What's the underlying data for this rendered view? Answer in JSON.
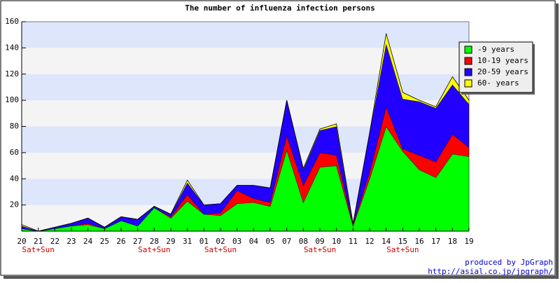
{
  "chart_data": {
    "type": "stacked_area",
    "title": "The number of influenza infection persons",
    "categories": [
      "20",
      "21",
      "22",
      "23",
      "24",
      "25",
      "26",
      "27",
      "28",
      "29",
      "31",
      "01",
      "02",
      "03",
      "04",
      "05",
      "07",
      "08",
      "09",
      "10",
      "11",
      "12",
      "14",
      "15",
      "16",
      "17",
      "18",
      "19"
    ],
    "sublabels": [
      null,
      "Sat+Sun",
      null,
      null,
      null,
      null,
      null,
      null,
      "Sat+Sun",
      null,
      null,
      null,
      "Sat+Sun",
      null,
      null,
      null,
      null,
      null,
      "Sat+Sun",
      null,
      null,
      null,
      null,
      "Sat+Sun",
      null,
      null,
      null,
      null
    ],
    "series": [
      {
        "name": "-9 years",
        "color": "#00ff00",
        "values": [
          2,
          0,
          2,
          4,
          5,
          2,
          8,
          4,
          18,
          10,
          23,
          13,
          12,
          21,
          22,
          19,
          62,
          22,
          49,
          50,
          4,
          40,
          80,
          61,
          47,
          41,
          59,
          57
        ]
      },
      {
        "name": "10-19 years",
        "color": "#ff0000",
        "values": [
          0,
          0,
          0,
          0,
          1,
          0,
          0,
          0,
          0,
          1,
          5,
          0,
          2,
          10,
          3,
          3,
          11,
          13,
          11,
          8,
          1,
          5,
          15,
          2,
          11,
          12,
          15,
          7
        ]
      },
      {
        "name": "20-59 years",
        "color": "#2200ff",
        "values": [
          2,
          0,
          1,
          2,
          4,
          1,
          3,
          5,
          1,
          2,
          9,
          7,
          7,
          4,
          10,
          11,
          27,
          12,
          17,
          22,
          0,
          30,
          48,
          38,
          41,
          41,
          38,
          33
        ]
      },
      {
        "name": "60- years",
        "color": "#ffff00",
        "values": [
          1,
          0,
          0,
          0,
          0,
          0,
          0,
          0,
          0,
          0,
          2,
          0,
          0,
          0,
          0,
          0,
          0,
          1,
          1,
          2,
          1,
          0,
          8,
          5,
          1,
          1,
          6,
          3
        ]
      }
    ],
    "ylim": [
      0,
      160
    ],
    "yticks": [
      20,
      40,
      60,
      80,
      100,
      120,
      140,
      160
    ],
    "band_colors": [
      "#f4f4f4",
      "#dde6fb"
    ],
    "legend": "right",
    "footer": [
      "produced by JpGraph",
      "http://asial.co.jp/jpgraph/"
    ]
  }
}
